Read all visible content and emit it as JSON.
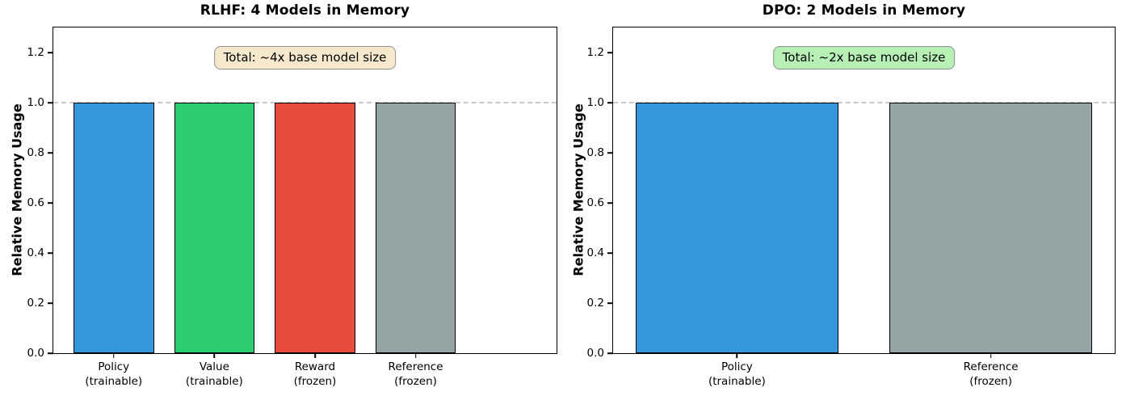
{
  "chart_data": [
    {
      "type": "bar",
      "title": "RLHF: 4 Models in Memory",
      "ylabel": "Relative Memory Usage",
      "categories": [
        {
          "label": "Policy",
          "sublabel": "(trainable)"
        },
        {
          "label": "Value",
          "sublabel": "(trainable)"
        },
        {
          "label": "Reward",
          "sublabel": "(frozen)"
        },
        {
          "label": "Reference",
          "sublabel": "(frozen)"
        }
      ],
      "values": [
        1.0,
        1.0,
        1.0,
        1.0
      ],
      "bar_colors": [
        "#3498db",
        "#2ecc71",
        "#e74c3c",
        "#95a5a6"
      ],
      "annotation": {
        "text": "Total: ~4x base model size",
        "bg_color": "#f6e8cc",
        "border_color": "#8f8f8f"
      },
      "ylim": [
        0,
        1.3
      ],
      "yticks": [
        0.0,
        0.2,
        0.4,
        0.6,
        0.8,
        1.0,
        1.2
      ],
      "reference_line_y": 1.0,
      "grid": false,
      "legend": "none",
      "layout": {
        "bar_centers_pct": [
          12,
          32,
          52,
          72
        ],
        "bar_width_pct": 16
      }
    },
    {
      "type": "bar",
      "title": "DPO: 2 Models in Memory",
      "ylabel": "Relative Memory Usage",
      "categories": [
        {
          "label": "Policy",
          "sublabel": "(trainable)"
        },
        {
          "label": "Reference",
          "sublabel": "(frozen)"
        }
      ],
      "values": [
        1.0,
        1.0
      ],
      "bar_colors": [
        "#3498db",
        "#95a5a6"
      ],
      "annotation": {
        "text": "Total: ~2x base model size",
        "bg_color": "#b6f0b4",
        "border_color": "#8f8f8f"
      },
      "ylim": [
        0,
        1.3
      ],
      "yticks": [
        0.0,
        0.2,
        0.4,
        0.6,
        0.8,
        1.0,
        1.2
      ],
      "reference_line_y": 1.0,
      "grid": false,
      "legend": "none",
      "layout": {
        "bar_centers_pct": [
          24.7,
          75.3
        ],
        "bar_width_pct": 40.5
      }
    }
  ]
}
